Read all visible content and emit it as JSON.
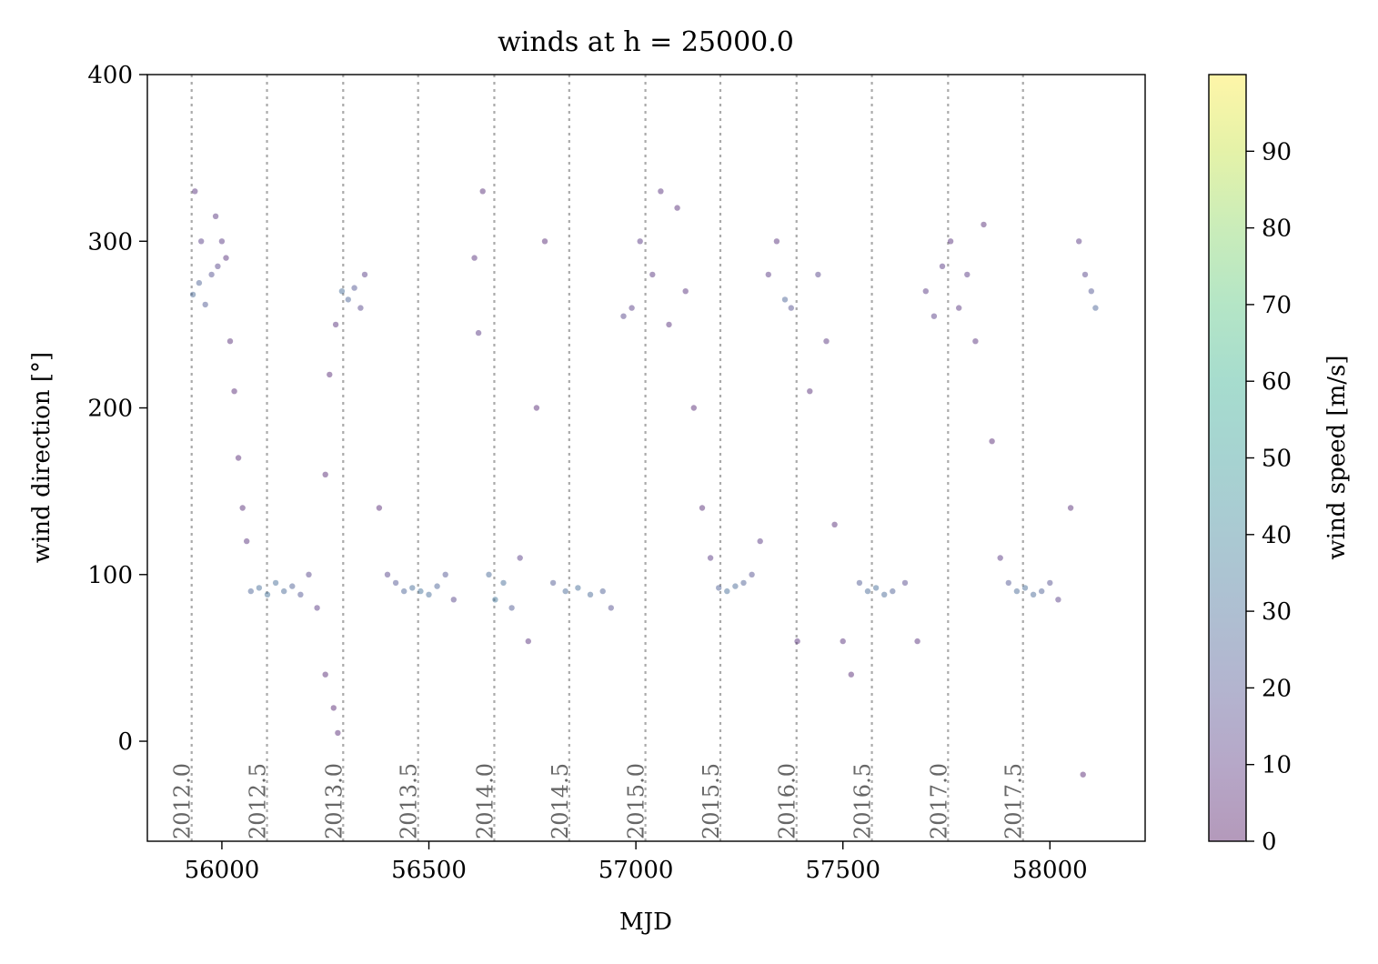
{
  "chart_data": {
    "type": "scatter",
    "title": "winds at h = 25000.0",
    "xlabel": "MJD",
    "ylabel": "wind direction [°]",
    "xlim": [
      55820,
      58230
    ],
    "ylim": [
      -60,
      400
    ],
    "xticks": [
      56000,
      56500,
      57000,
      57500,
      58000
    ],
    "xtick_labels": [
      "56000",
      "56500",
      "57000",
      "57500",
      "58000"
    ],
    "yticks": [
      0,
      100,
      200,
      300,
      400
    ],
    "ytick_labels": [
      "0",
      "100",
      "200",
      "300",
      "400"
    ],
    "grid": false,
    "legend": "none",
    "colormap": "viridis",
    "marker_alpha": 0.45,
    "year_markers": [
      {
        "label": "2012.0",
        "x": 55927
      },
      {
        "label": "2012.5",
        "x": 56109
      },
      {
        "label": "2013.0",
        "x": 56293
      },
      {
        "label": "2013.5",
        "x": 56474
      },
      {
        "label": "2014.0",
        "x": 56658
      },
      {
        "label": "2014.5",
        "x": 56839
      },
      {
        "label": "2015.0",
        "x": 57023
      },
      {
        "label": "2015.5",
        "x": 57204
      },
      {
        "label": "2016.0",
        "x": 57388
      },
      {
        "label": "2016.5",
        "x": 57570
      },
      {
        "label": "2017.0",
        "x": 57754
      },
      {
        "label": "2017.5",
        "x": 57935
      }
    ],
    "colorbar": {
      "label": "wind speed [m/s]",
      "min": 0,
      "max": 100,
      "ticks": [
        0,
        10,
        20,
        30,
        40,
        50,
        60,
        70,
        80,
        90
      ],
      "tick_labels": [
        "0",
        "10",
        "20",
        "30",
        "40",
        "50",
        "60",
        "70",
        "80",
        "90"
      ]
    },
    "series": [
      {
        "columns": [
          "MJD",
          "wind direction",
          "wind speed"
        ],
        "points": [
          [
            55930,
            268,
            28
          ],
          [
            55945,
            275,
            25
          ],
          [
            55960,
            262,
            22
          ],
          [
            55975,
            280,
            18
          ],
          [
            55990,
            285,
            14
          ],
          [
            56000,
            300,
            10
          ],
          [
            55935,
            330,
            8
          ],
          [
            55950,
            300,
            12
          ],
          [
            55985,
            315,
            9
          ],
          [
            56010,
            290,
            8
          ],
          [
            56020,
            240,
            7
          ],
          [
            56030,
            210,
            6
          ],
          [
            56040,
            170,
            6
          ],
          [
            56050,
            140,
            7
          ],
          [
            56060,
            120,
            8
          ],
          [
            56070,
            90,
            26
          ],
          [
            56090,
            92,
            30
          ],
          [
            56110,
            88,
            32
          ],
          [
            56130,
            95,
            30
          ],
          [
            56150,
            90,
            28
          ],
          [
            56170,
            93,
            24
          ],
          [
            56190,
            88,
            20
          ],
          [
            56210,
            100,
            14
          ],
          [
            56230,
            80,
            10
          ],
          [
            56250,
            160,
            6
          ],
          [
            56260,
            220,
            6
          ],
          [
            56275,
            250,
            8
          ],
          [
            56290,
            270,
            30
          ],
          [
            56305,
            265,
            26
          ],
          [
            56320,
            272,
            20
          ],
          [
            56335,
            260,
            15
          ],
          [
            56345,
            280,
            12
          ],
          [
            56250,
            40,
            6
          ],
          [
            56270,
            20,
            5
          ],
          [
            56280,
            5,
            6
          ],
          [
            56380,
            140,
            6
          ],
          [
            56400,
            100,
            14
          ],
          [
            56420,
            95,
            20
          ],
          [
            56440,
            90,
            26
          ],
          [
            56460,
            92,
            30
          ],
          [
            56480,
            90,
            32
          ],
          [
            56500,
            88,
            30
          ],
          [
            56520,
            93,
            26
          ],
          [
            56540,
            100,
            20
          ],
          [
            56560,
            85,
            14
          ],
          [
            56610,
            290,
            8
          ],
          [
            56620,
            245,
            10
          ],
          [
            56630,
            330,
            7
          ],
          [
            56645,
            100,
            28
          ],
          [
            56660,
            85,
            34
          ],
          [
            56680,
            95,
            30
          ],
          [
            56700,
            80,
            22
          ],
          [
            56720,
            110,
            12
          ],
          [
            56740,
            60,
            8
          ],
          [
            56760,
            200,
            6
          ],
          [
            56780,
            300,
            6
          ],
          [
            56800,
            95,
            22
          ],
          [
            56830,
            90,
            28
          ],
          [
            56860,
            92,
            30
          ],
          [
            56890,
            88,
            28
          ],
          [
            56920,
            90,
            24
          ],
          [
            56940,
            80,
            18
          ],
          [
            56970,
            255,
            14
          ],
          [
            56990,
            260,
            12
          ],
          [
            57010,
            300,
            10
          ],
          [
            57040,
            280,
            9
          ],
          [
            57060,
            330,
            8
          ],
          [
            57080,
            250,
            8
          ],
          [
            57100,
            320,
            7
          ],
          [
            57120,
            270,
            8
          ],
          [
            57140,
            200,
            6
          ],
          [
            57160,
            140,
            7
          ],
          [
            57180,
            110,
            10
          ],
          [
            57200,
            92,
            24
          ],
          [
            57220,
            90,
            30
          ],
          [
            57240,
            93,
            28
          ],
          [
            57260,
            95,
            24
          ],
          [
            57280,
            100,
            18
          ],
          [
            57300,
            120,
            10
          ],
          [
            57320,
            280,
            10
          ],
          [
            57340,
            300,
            8
          ],
          [
            57360,
            265,
            26
          ],
          [
            57375,
            260,
            18
          ],
          [
            57390,
            60,
            8
          ],
          [
            57420,
            210,
            7
          ],
          [
            57440,
            280,
            14
          ],
          [
            57460,
            240,
            9
          ],
          [
            57480,
            130,
            7
          ],
          [
            57500,
            60,
            8
          ],
          [
            57520,
            40,
            6
          ],
          [
            57540,
            95,
            22
          ],
          [
            57560,
            90,
            28
          ],
          [
            57580,
            92,
            30
          ],
          [
            57600,
            88,
            28
          ],
          [
            57620,
            90,
            24
          ],
          [
            57650,
            95,
            16
          ],
          [
            57680,
            60,
            8
          ],
          [
            57700,
            270,
            10
          ],
          [
            57720,
            255,
            12
          ],
          [
            57740,
            285,
            10
          ],
          [
            57760,
            300,
            8
          ],
          [
            57780,
            260,
            9
          ],
          [
            57800,
            280,
            10
          ],
          [
            57820,
            240,
            8
          ],
          [
            57840,
            310,
            7
          ],
          [
            57860,
            180,
            6
          ],
          [
            57880,
            110,
            10
          ],
          [
            57900,
            95,
            20
          ],
          [
            57920,
            90,
            28
          ],
          [
            57940,
            92,
            30
          ],
          [
            57960,
            88,
            28
          ],
          [
            57980,
            90,
            24
          ],
          [
            58000,
            95,
            18
          ],
          [
            58020,
            85,
            12
          ],
          [
            58050,
            140,
            7
          ],
          [
            58070,
            300,
            10
          ],
          [
            58085,
            280,
            14
          ],
          [
            58100,
            270,
            20
          ],
          [
            58110,
            260,
            26
          ],
          [
            58080,
            -20,
            5
          ]
        ]
      }
    ]
  }
}
